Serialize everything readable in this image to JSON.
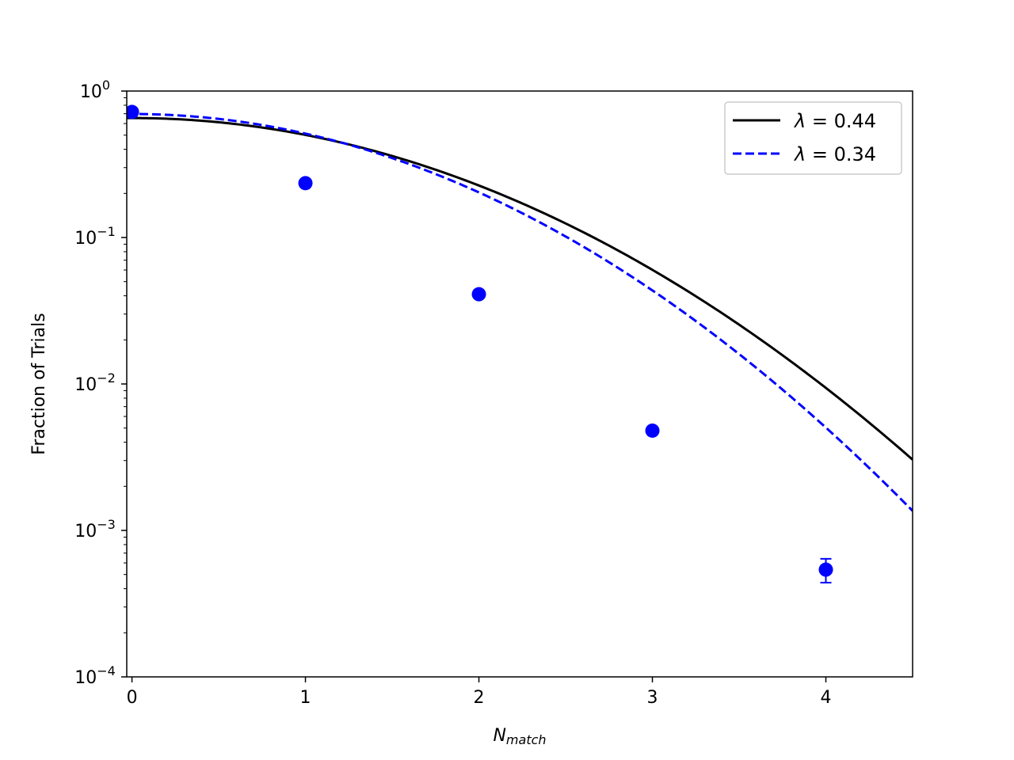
{
  "chart_data": {
    "type": "scatter",
    "title": "",
    "xlabel": {
      "main": "N",
      "sub": "match"
    },
    "ylabel": "Fraction of Trials",
    "xlim": [
      -0.03,
      4.5
    ],
    "ylim": [
      0.0001,
      1
    ],
    "yscale": "log",
    "grid": false,
    "legend_position": "top-right",
    "x_ticks": [
      {
        "value": 0,
        "label": "0"
      },
      {
        "value": 1,
        "label": "1"
      },
      {
        "value": 2,
        "label": "2"
      },
      {
        "value": 3,
        "label": "3"
      },
      {
        "value": 4,
        "label": "4"
      }
    ],
    "y_ticks": [
      {
        "value": 1,
        "base": "10",
        "exp": "0"
      },
      {
        "value": 0.1,
        "base": "10",
        "exp": "−1"
      },
      {
        "value": 0.01,
        "base": "10",
        "exp": "−2"
      },
      {
        "value": 0.001,
        "base": "10",
        "exp": "−3"
      },
      {
        "value": 0.0001,
        "base": "10",
        "exp": "−4"
      }
    ],
    "series": [
      {
        "name": "0.44",
        "legend_symbol": "λ =",
        "kind": "line",
        "style": "solid",
        "color": "#000000",
        "lambda": 0.44
      },
      {
        "name": "0.34",
        "legend_symbol": "λ =",
        "kind": "line",
        "style": "dashed",
        "color": "#0000ff",
        "lambda": 0.34
      },
      {
        "kind": "points",
        "color": "#0000ff",
        "x": [
          0,
          1,
          2,
          3,
          4
        ],
        "y": [
          0.72,
          0.235,
          0.041,
          0.0048,
          0.00054
        ],
        "yerr": [
          0,
          0,
          0,
          0,
          0.0001
        ]
      }
    ]
  }
}
